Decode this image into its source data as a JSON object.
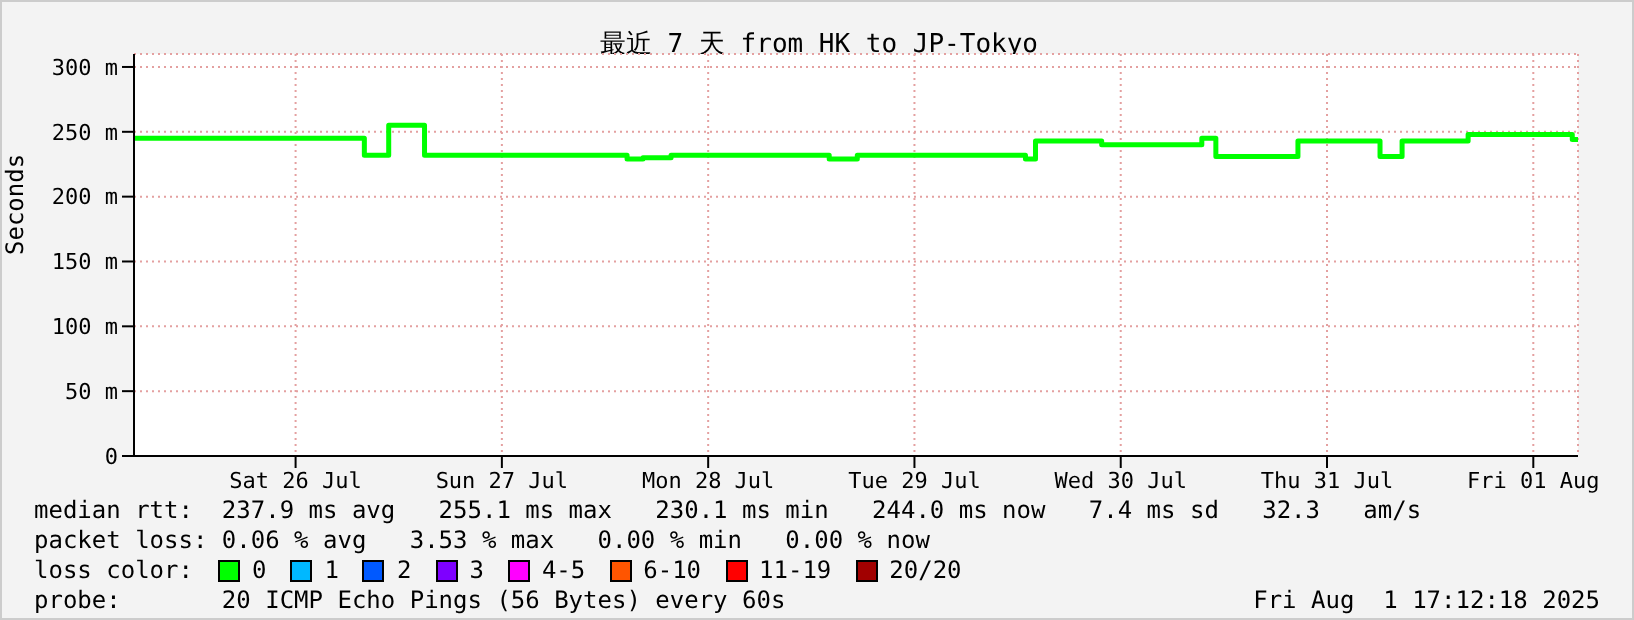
{
  "chart_data": {
    "type": "step",
    "title": "最近 7 天 from HK to JP-Tokyo",
    "ylabel": "Seconds",
    "legend_title": "loss color:",
    "x": [
      "2025-07-25T17:12",
      "2025-07-26T19:35",
      "2025-07-26T20:00",
      "2025-07-26T22:50",
      "2025-07-27T03:00",
      "2025-07-28T02:34",
      "2025-07-28T04:25",
      "2025-07-28T07:41",
      "2025-07-29T02:05",
      "2025-07-29T05:21",
      "2025-07-30T00:55",
      "2025-07-30T02:05",
      "2025-07-30T09:47",
      "2025-07-30T21:26",
      "2025-07-30T23:04",
      "2025-07-31T08:37",
      "2025-07-31T18:10",
      "2025-07-31T20:44",
      "2025-08-01T04:25",
      "2025-08-01T16:32",
      "2025-08-01T17:12"
    ],
    "series": [
      {
        "name": "0",
        "color": "#00ff00",
        "values": [
          245,
          245,
          232,
          255,
          232,
          229,
          230,
          232,
          229,
          232,
          229,
          243,
          240,
          245,
          231,
          243,
          231,
          243,
          248,
          244,
          244
        ]
      },
      {
        "name": "1",
        "color": "#00b8ff",
        "values": [
          null,
          null,
          null,
          null,
          null,
          null,
          null,
          null,
          null,
          null,
          null,
          null,
          null,
          null,
          null,
          null,
          null,
          null,
          null,
          null,
          null
        ]
      },
      {
        "name": "2",
        "color": "#0059ff",
        "values": [
          null,
          null,
          null,
          null,
          null,
          null,
          null,
          null,
          null,
          null,
          null,
          null,
          null,
          null,
          null,
          null,
          null,
          null,
          null,
          null,
          null
        ]
      },
      {
        "name": "3",
        "color": "#7e00ff",
        "values": [
          null,
          null,
          null,
          null,
          null,
          null,
          null,
          null,
          null,
          null,
          null,
          null,
          null,
          null,
          null,
          null,
          null,
          null,
          null,
          null,
          null
        ]
      },
      {
        "name": "4-5",
        "color": "#ff00ff",
        "values": [
          null,
          null,
          null,
          null,
          null,
          null,
          null,
          null,
          null,
          null,
          null,
          null,
          null,
          null,
          null,
          null,
          null,
          null,
          null,
          null,
          null
        ]
      },
      {
        "name": "6-10",
        "color": "#ff5500",
        "values": [
          null,
          null,
          null,
          null,
          null,
          null,
          null,
          null,
          null,
          null,
          null,
          null,
          null,
          null,
          null,
          null,
          null,
          null,
          null,
          null,
          null
        ]
      },
      {
        "name": "11-19",
        "color": "#ff0000",
        "values": [
          null,
          null,
          null,
          null,
          null,
          null,
          null,
          null,
          null,
          null,
          null,
          null,
          null,
          null,
          null,
          null,
          null,
          null,
          null,
          null,
          null
        ]
      },
      {
        "name": "20/20",
        "color": "#a10000",
        "values": [
          null,
          null,
          null,
          null,
          null,
          null,
          null,
          null,
          null,
          null,
          null,
          null,
          null,
          null,
          null,
          null,
          null,
          null,
          null,
          null,
          null
        ]
      }
    ],
    "xlim": [
      "2025-07-25T17:12",
      "2025-08-01T17:12"
    ],
    "xticks": [
      {
        "value": "2025-07-26T12:00",
        "label": "Sat 26 Jul"
      },
      {
        "value": "2025-07-27T12:00",
        "label": "Sun 27 Jul"
      },
      {
        "value": "2025-07-28T12:00",
        "label": "Mon 28 Jul"
      },
      {
        "value": "2025-07-29T12:00",
        "label": "Tue 29 Jul"
      },
      {
        "value": "2025-07-30T12:00",
        "label": "Wed 30 Jul"
      },
      {
        "value": "2025-07-31T12:00",
        "label": "Thu 31 Jul"
      },
      {
        "value": "2025-08-01T12:00",
        "label": "Fri 01 Aug"
      }
    ],
    "ylim": [
      0,
      310
    ],
    "yticks": [
      0,
      {
        "value": 50,
        "label": "50 m"
      },
      {
        "value": 100,
        "label": "100 m"
      },
      {
        "value": 150,
        "label": "150 m"
      },
      {
        "value": 200,
        "label": "200 m"
      },
      {
        "value": 250,
        "label": "250 m"
      },
      {
        "value": 300,
        "label": "300 m"
      }
    ],
    "grid": true,
    "legend": "bottom",
    "line_style": "solid",
    "annotations": [
      "median rtt:  237.9 ms avg   255.1 ms max   230.1 ms min   244.0 ms now   7.4 ms sd   32.3   am/s",
      "packet loss: 0.06 % avg   3.53 % max   0.00 % min   0.00 % now",
      "probe:       20 ICMP Echo Pings (56 Bytes) every 60s",
      "Fri Aug  1 17:12:18 2025"
    ]
  }
}
